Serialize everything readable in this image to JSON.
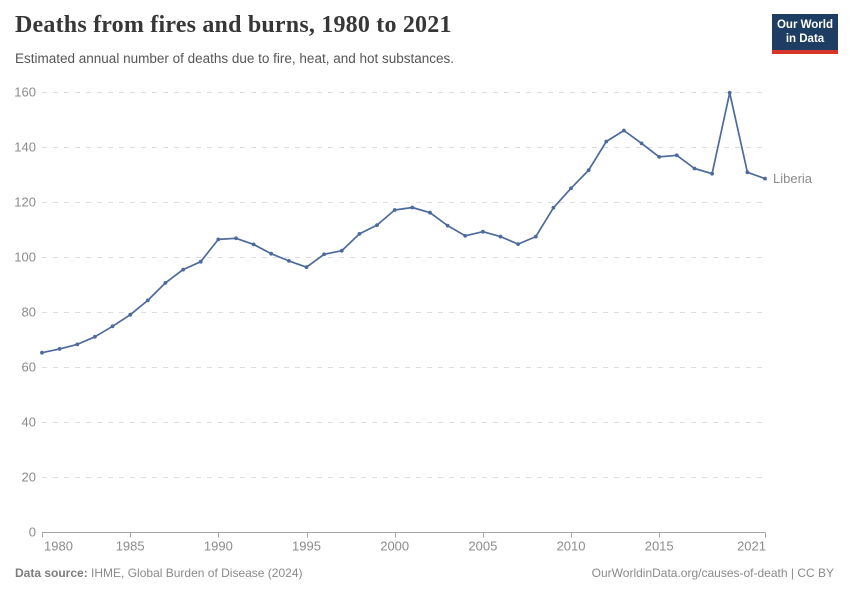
{
  "header": {
    "title": "Deaths from fires and burns, 1980 to 2021",
    "subtitle": "Estimated annual number of deaths due to fire, heat, and hot substances."
  },
  "logo": {
    "line1": "Our World",
    "line2": "in Data"
  },
  "footer": {
    "source_label": "Data source:",
    "source_value": "IHME, Global Burden of Disease (2024)",
    "right": "OurWorldinData.org/causes-of-death | CC BY"
  },
  "colors": {
    "line": "#4c6a9c",
    "grid": "#dedede",
    "axis": "#a5a5a5",
    "tick_text": "#8c8c8c",
    "logo_bg": "#1d3d63",
    "logo_stripe": "#d8352a"
  },
  "chart_data": {
    "type": "line",
    "title": "Deaths from fires and burns, 1980 to 2021",
    "xlabel": "",
    "ylabel": "",
    "xlim": [
      1980,
      2021
    ],
    "ylim": [
      0,
      160
    ],
    "x_ticks": [
      1980,
      1985,
      1990,
      1995,
      2000,
      2005,
      2010,
      2015,
      2021
    ],
    "y_ticks": [
      0,
      20,
      40,
      60,
      80,
      100,
      120,
      140,
      160
    ],
    "grid": "horizontal-dashed",
    "legend": "inline-end-label",
    "series": [
      {
        "name": "Liberia",
        "color": "#4c6a9c",
        "x": [
          1980,
          1981,
          1982,
          1983,
          1984,
          1985,
          1986,
          1987,
          1988,
          1989,
          1990,
          1991,
          1992,
          1993,
          1994,
          1995,
          1996,
          1997,
          1998,
          1999,
          2000,
          2001,
          2002,
          2003,
          2004,
          2005,
          2006,
          2007,
          2008,
          2009,
          2010,
          2011,
          2012,
          2013,
          2014,
          2015,
          2016,
          2017,
          2018,
          2019,
          2020,
          2021
        ],
        "values": [
          65.2,
          66.6,
          68.2,
          71,
          74.8,
          79,
          84.2,
          90.6,
          95.4,
          98.3,
          106.4,
          106.8,
          104.6,
          101.2,
          98.6,
          96.3,
          101,
          102.3,
          108.4,
          111.6,
          117.1,
          118,
          116.1,
          111.4,
          107.7,
          109.2,
          107.4,
          104.7,
          107.4,
          117.9,
          125,
          131.6,
          142,
          146,
          141.3,
          136.4,
          137,
          132.2,
          130.3,
          159.7,
          130.8,
          128.5
        ]
      }
    ]
  }
}
